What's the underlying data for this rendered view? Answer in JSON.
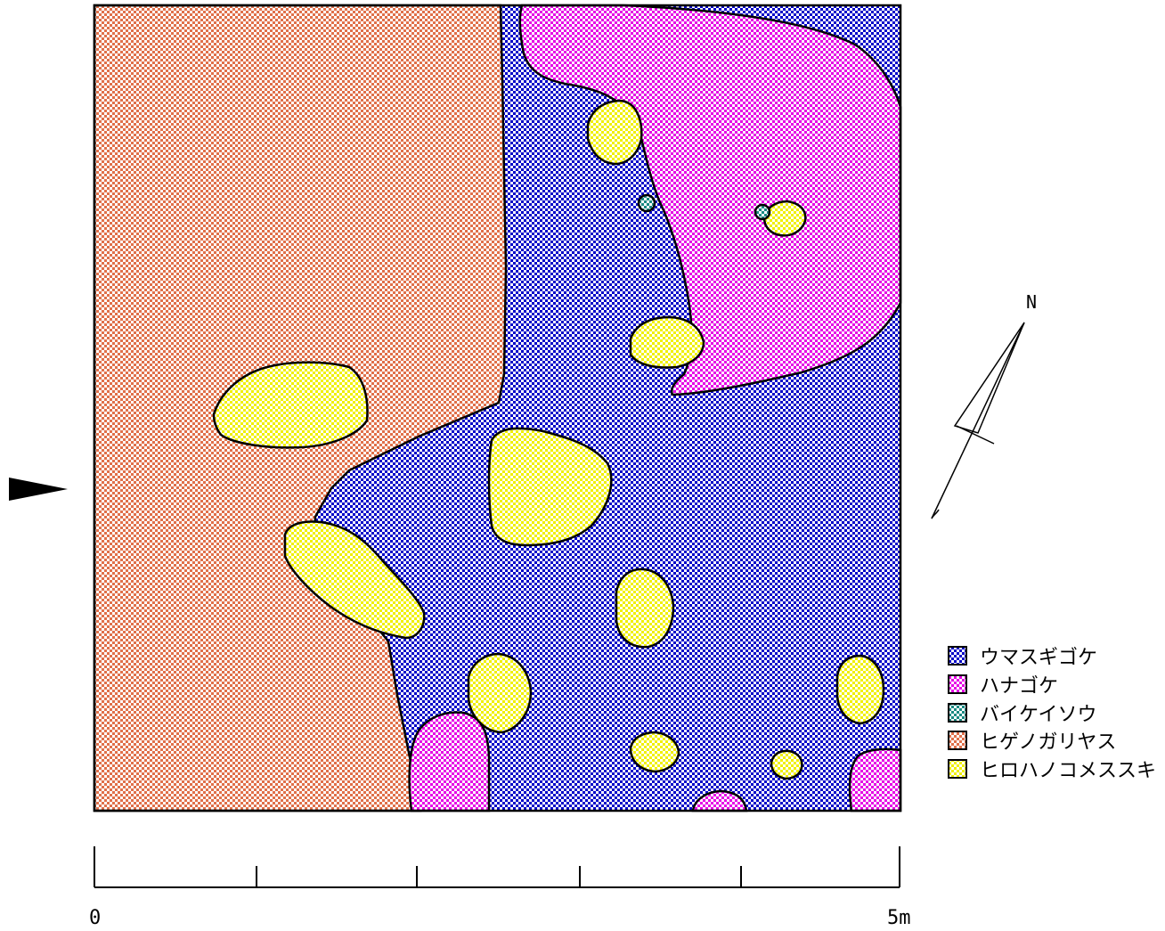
{
  "map": {
    "compass_label": "N"
  },
  "legend": {
    "items": [
      {
        "label": "ウマスギゴケ",
        "fg": "#0000c8",
        "bg": "#ffffff"
      },
      {
        "label": "ハナゴケ",
        "fg": "#e600e6",
        "bg": "#ffffff"
      },
      {
        "label": "バイケイソウ",
        "fg": "#1a8a82",
        "bg": "#ffffff"
      },
      {
        "label": "ヒゲノガリヤス",
        "fg": "#e0704a",
        "bg": "#ffffff"
      },
      {
        "label": "ヒロハノコメススキ",
        "fg": "#f0f000",
        "bg": "#ffffff"
      }
    ]
  },
  "scale": {
    "start_label": "0",
    "end_label": "5m"
  }
}
